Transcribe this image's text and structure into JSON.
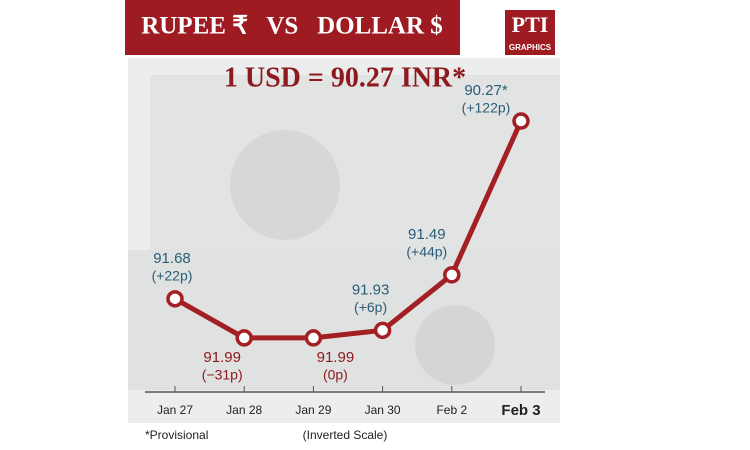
{
  "chart_data": {
    "type": "line",
    "title": "RUPEE ₹   VS   DOLLAR $",
    "subtitle": "1 USD = 90.27 INR*",
    "logo": "PTI",
    "logo_caption": "GRAPHICS",
    "categories": [
      "Jan 27",
      "Jan 28",
      "Jan 29",
      "Jan 30",
      "Feb 2",
      "Feb 3"
    ],
    "values": [
      91.68,
      91.99,
      91.99,
      91.93,
      91.49,
      90.27
    ],
    "value_labels": [
      "91.68",
      "91.99",
      "91.99",
      "91.93",
      "91.49",
      "90.27*"
    ],
    "changes": [
      "(+22p)",
      "(−31p)",
      "(0p)",
      "(+6p)",
      "(+44p)",
      "(+122p)"
    ],
    "color": "#a31f24",
    "ylim": [
      90,
      92.3
    ],
    "inverted": true,
    "footnote": "*Provisional",
    "scale_note": "(Inverted Scale)"
  }
}
